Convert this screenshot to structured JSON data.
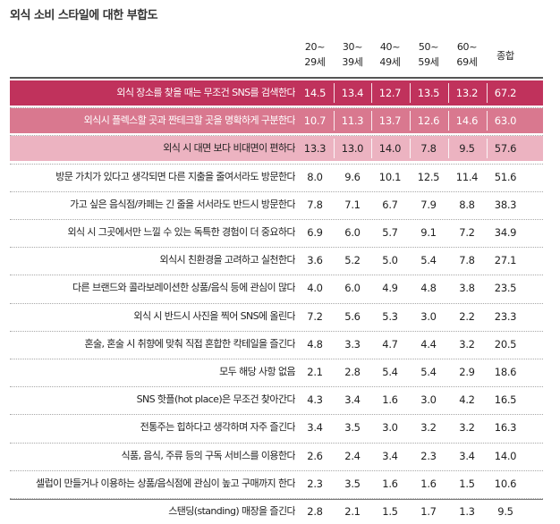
{
  "chart_data": {
    "type": "table",
    "title": "외식 소비 스타일에 대한 부합도",
    "columns": [
      [
        "20~",
        "29세"
      ],
      [
        "30~",
        "39세"
      ],
      [
        "40~",
        "49세"
      ],
      [
        "50~",
        "59세"
      ],
      [
        "60~",
        "69세"
      ],
      [
        "종합"
      ]
    ],
    "rows": [
      {
        "label": "외식 장소를 찾을 때는 무조건 SNS를 검색한다",
        "values": [
          14.5,
          13.4,
          12.7,
          13.5,
          13.2,
          67.2
        ],
        "highlight": 1
      },
      {
        "label": "외식시 플렉스할 곳과 짠테크할 곳을 명확하게 구분한다",
        "values": [
          10.7,
          11.3,
          13.7,
          12.6,
          14.6,
          63.0
        ],
        "highlight": 2
      },
      {
        "label": "외식 시 대면 보다 비대면이 편하다",
        "values": [
          13.3,
          13.0,
          14.0,
          7.8,
          9.5,
          57.6
        ],
        "highlight": 3
      },
      {
        "label": "방문 가치가 있다고 생각되면 다른 지출을 줄여서라도 방문한다",
        "values": [
          8.0,
          9.6,
          10.1,
          12.5,
          11.4,
          51.6
        ],
        "highlight": 0
      },
      {
        "label": "가고 싶은 음식점/카페는 긴 줄을 서서라도 반드시 방문한다",
        "values": [
          7.8,
          7.1,
          6.7,
          7.9,
          8.8,
          38.3
        ],
        "highlight": 0
      },
      {
        "label": "외식 시 그곳에서만 느낄 수 있는 독특한 경험이 더 중요하다",
        "values": [
          6.9,
          6.0,
          5.7,
          9.1,
          7.2,
          34.9
        ],
        "highlight": 0
      },
      {
        "label": "외식시 친환경을 고려하고 실천한다",
        "values": [
          3.6,
          5.2,
          5.0,
          5.4,
          7.8,
          27.1
        ],
        "highlight": 0
      },
      {
        "label": "다른 브랜드와 콜라보레이션한 상품/음식 등에 관심이 많다",
        "values": [
          4.0,
          6.0,
          4.9,
          4.8,
          3.8,
          23.5
        ],
        "highlight": 0
      },
      {
        "label": "외식 시 반드시 사진을 찍어 SNS에 올린다",
        "values": [
          7.2,
          5.6,
          5.3,
          3.0,
          2.2,
          23.3
        ],
        "highlight": 0
      },
      {
        "label": "혼술, 혼술 시 취향에 맞춰 직접 혼합한 칵테일을 즐긴다",
        "values": [
          4.8,
          3.3,
          4.7,
          4.4,
          3.2,
          20.5
        ],
        "highlight": 0
      },
      {
        "label": "모두 해당 사항 없음",
        "values": [
          2.1,
          2.8,
          5.4,
          5.4,
          2.9,
          18.6
        ],
        "highlight": 0
      },
      {
        "label": "SNS 핫플(hot place)은 무조건 찾아간다",
        "values": [
          4.3,
          3.4,
          1.6,
          3.0,
          4.2,
          16.5
        ],
        "highlight": 0
      },
      {
        "label": "전통주는 힙하다고 생각하며 자주 즐긴다",
        "values": [
          3.4,
          3.5,
          3.0,
          3.2,
          3.2,
          16.3
        ],
        "highlight": 0
      },
      {
        "label": "식품, 음식, 주류 등의 구독 서비스를 이용한다",
        "values": [
          2.6,
          2.4,
          3.4,
          2.3,
          3.4,
          14.0
        ],
        "highlight": 0
      },
      {
        "label": "셀럽이 만들거나 이용하는 상품/음식점에 관심이 높고 구매까지 한다",
        "values": [
          2.3,
          3.5,
          1.6,
          1.6,
          1.5,
          10.6
        ],
        "highlight": 0
      },
      {
        "label": "스탠딩(standing) 매장을 즐긴다",
        "values": [
          2.8,
          2.1,
          1.5,
          1.7,
          1.3,
          9.5
        ],
        "highlight": 0
      }
    ],
    "highlight_colors": {
      "1": "#c0325c",
      "2": "#d9788f",
      "3": "#ecb3c1"
    },
    "highlight_text_colors": {
      "1": "#ffffff",
      "2": "#ffffff",
      "3": "#222222"
    },
    "decimals": 1
  }
}
